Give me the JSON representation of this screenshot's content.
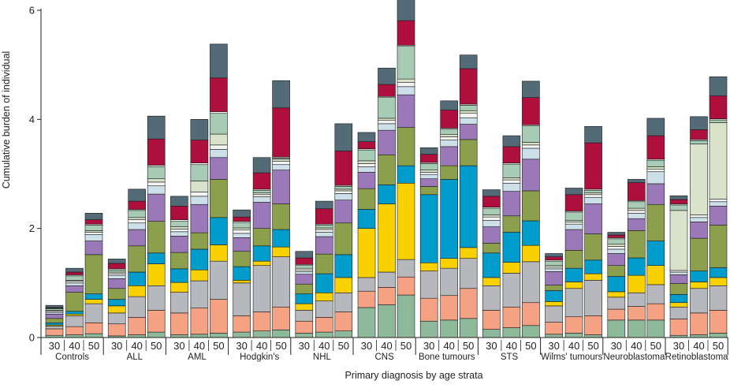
{
  "chart_data": {
    "type": "bar",
    "stacked": true,
    "xlabel": "Primary diagnosis by age strata",
    "ylabel": "Cumulative burden of individual",
    "ylim": [
      0,
      6
    ],
    "yticks": [
      "0",
      "2",
      "4",
      "6"
    ],
    "age_strata": [
      "30",
      "40",
      "50"
    ],
    "groups": [
      "Controls",
      "ALL",
      "AML",
      "Hodgkin's",
      "NHL",
      "CNS",
      "Bone tumours",
      "STS",
      "Wilms' tumours",
      "Neuroblastoma",
      "Retinoblastoma"
    ],
    "segment_colors": [
      "#8db89a",
      "#f4a184",
      "#b6b8bd",
      "#f9d100",
      "#009ccb",
      "#8b9f4c",
      "#9b78b7",
      "#cde0ea",
      "#f4f4f4",
      "#d8e3c9",
      "#a8cbb5",
      "#ffffff",
      "#ae0f3d",
      "#536a77"
    ],
    "bars": [
      {
        "group": "Controls",
        "age": "30",
        "segments": [
          0.04,
          0.12,
          0.05,
          0.02,
          0.04,
          0.08,
          0.08,
          0.03,
          0.02,
          0.02,
          0.03,
          0.01,
          0.01,
          0.04
        ]
      },
      {
        "group": "Controls",
        "age": "40",
        "segments": [
          0.05,
          0.15,
          0.2,
          0.03,
          0.05,
          0.35,
          0.12,
          0.05,
          0.03,
          0.02,
          0.08,
          0.02,
          0.05,
          0.07
        ]
      },
      {
        "group": "Controls",
        "age": "50",
        "segments": [
          0.07,
          0.2,
          0.35,
          0.08,
          0.1,
          0.72,
          0.25,
          0.12,
          0.04,
          0.03,
          0.1,
          0.02,
          0.08,
          0.12
        ]
      },
      {
        "group": "ALL",
        "age": "30",
        "segments": [
          0.03,
          0.22,
          0.2,
          0.13,
          0.12,
          0.2,
          0.18,
          0.06,
          0.03,
          0.03,
          0.04,
          0.02,
          0.1,
          0.08
        ]
      },
      {
        "group": "ALL",
        "age": "40",
        "segments": [
          0.05,
          0.32,
          0.38,
          0.2,
          0.25,
          0.48,
          0.3,
          0.12,
          0.06,
          0.04,
          0.13,
          0.02,
          0.15,
          0.22
        ]
      },
      {
        "group": "ALL",
        "age": "50",
        "segments": [
          0.1,
          0.4,
          0.45,
          0.4,
          0.2,
          0.58,
          0.5,
          0.15,
          0.07,
          0.06,
          0.22,
          0.03,
          0.48,
          0.42
        ]
      },
      {
        "group": "AML",
        "age": "30",
        "segments": [
          0.05,
          0.4,
          0.38,
          0.18,
          0.25,
          0.3,
          0.3,
          0.08,
          0.05,
          0.04,
          0.1,
          0.03,
          0.25,
          0.18
        ]
      },
      {
        "group": "AML",
        "age": "40",
        "segments": [
          0.06,
          0.48,
          0.5,
          0.2,
          0.38,
          0.3,
          0.52,
          0.15,
          0.08,
          0.2,
          0.3,
          0.03,
          0.42,
          0.38
        ]
      },
      {
        "group": "AML",
        "age": "50",
        "segments": [
          0.08,
          0.62,
          0.7,
          0.3,
          0.5,
          0.7,
          0.4,
          0.15,
          0.08,
          0.2,
          0.38,
          0.03,
          0.62,
          0.62
        ]
      },
      {
        "group": "Hodgkin's",
        "age": "30",
        "segments": [
          0.1,
          0.3,
          0.6,
          0.05,
          0.25,
          0.28,
          0.25,
          0.08,
          0.06,
          0.04,
          0.1,
          0.02,
          0.08,
          0.13
        ]
      },
      {
        "group": "Hodgkin's",
        "age": "40",
        "segments": [
          0.12,
          0.35,
          0.85,
          0.08,
          0.28,
          0.32,
          0.48,
          0.1,
          0.04,
          0.03,
          0.05,
          0.02,
          0.3,
          0.28
        ]
      },
      {
        "group": "Hodgkin's",
        "age": "50",
        "segments": [
          0.14,
          0.42,
          0.92,
          0.18,
          0.32,
          0.47,
          0.62,
          0.1,
          0.06,
          0.04,
          0.02,
          0.02,
          0.9,
          0.5
        ]
      },
      {
        "group": "NHL",
        "age": "30",
        "segments": [
          0.08,
          0.22,
          0.2,
          0.12,
          0.18,
          0.18,
          0.18,
          0.05,
          0.03,
          0.03,
          0.05,
          0.02,
          0.12,
          0.12
        ]
      },
      {
        "group": "NHL",
        "age": "40",
        "segments": [
          0.1,
          0.27,
          0.3,
          0.15,
          0.35,
          0.36,
          0.32,
          0.08,
          0.05,
          0.03,
          0.05,
          0.02,
          0.28,
          0.14
        ]
      },
      {
        "group": "NHL",
        "age": "50",
        "segments": [
          0.12,
          0.35,
          0.35,
          0.28,
          0.42,
          0.58,
          0.42,
          0.12,
          0.05,
          0.03,
          0.05,
          0.02,
          0.63,
          0.5
        ]
      },
      {
        "group": "CNS",
        "age": "30",
        "segments": [
          0.55,
          0.3,
          0.25,
          0.9,
          0.35,
          0.38,
          0.3,
          0.1,
          0.06,
          0.05,
          0.2,
          0.02,
          0.13,
          0.17
        ]
      },
      {
        "group": "CNS",
        "age": "40",
        "segments": [
          0.6,
          0.32,
          0.28,
          1.25,
          0.35,
          0.55,
          0.45,
          0.12,
          0.06,
          0.04,
          0.38,
          0.02,
          0.22,
          0.3
        ]
      },
      {
        "group": "CNS",
        "age": "50",
        "segments": [
          0.78,
          0.33,
          0.32,
          1.4,
          0.32,
          0.7,
          0.6,
          0.15,
          0.08,
          0.06,
          0.6,
          0.02,
          0.45,
          0.42
        ]
      },
      {
        "group": "Bone tumours",
        "age": "30",
        "segments": [
          0.3,
          0.42,
          0.5,
          0.15,
          1.25,
          0.15,
          0.14,
          0.08,
          0.04,
          0.04,
          0.12,
          0.02,
          0.15,
          0.12
        ]
      },
      {
        "group": "Bone tumours",
        "age": "40",
        "segments": [
          0.32,
          0.45,
          0.5,
          0.18,
          1.45,
          0.25,
          0.35,
          0.12,
          0.06,
          0.04,
          0.1,
          0.02,
          0.33,
          0.17
        ]
      },
      {
        "group": "Bone tumours",
        "age": "50",
        "segments": [
          0.35,
          0.55,
          0.55,
          0.2,
          1.5,
          0.48,
          0.28,
          0.12,
          0.08,
          0.05,
          0.1,
          0.02,
          0.65,
          0.25
        ]
      },
      {
        "group": "STS",
        "age": "30",
        "segments": [
          0.15,
          0.35,
          0.45,
          0.15,
          0.45,
          0.18,
          0.3,
          0.12,
          0.06,
          0.04,
          0.12,
          0.02,
          0.2,
          0.12
        ]
      },
      {
        "group": "STS",
        "age": "40",
        "segments": [
          0.18,
          0.38,
          0.62,
          0.2,
          0.55,
          0.3,
          0.45,
          0.15,
          0.06,
          0.04,
          0.25,
          0.02,
          0.3,
          0.2
        ]
      },
      {
        "group": "STS",
        "age": "50",
        "segments": [
          0.22,
          0.42,
          0.75,
          0.3,
          0.45,
          0.55,
          0.58,
          0.2,
          0.06,
          0.05,
          0.3,
          0.02,
          0.5,
          0.3
        ]
      },
      {
        "group": "Wilms' tumours",
        "age": "30",
        "segments": [
          0.06,
          0.22,
          0.3,
          0.08,
          0.2,
          0.1,
          0.25,
          0.05,
          0.03,
          0.03,
          0.08,
          0.02,
          0.06,
          0.06
        ]
      },
      {
        "group": "Wilms' tumours",
        "age": "40",
        "segments": [
          0.08,
          0.3,
          0.52,
          0.12,
          0.25,
          0.33,
          0.38,
          0.1,
          0.04,
          0.03,
          0.15,
          0.02,
          0.3,
          0.12
        ]
      },
      {
        "group": "Wilms' tumours",
        "age": "50",
        "segments": [
          0.05,
          0.35,
          0.65,
          0.12,
          0.25,
          0.48,
          0.55,
          0.12,
          0.05,
          0.03,
          0.05,
          0.02,
          0.85,
          0.3
        ]
      },
      {
        "group": "Neuroblastoma",
        "age": "30",
        "segments": [
          0.32,
          0.2,
          0.22,
          0.1,
          0.28,
          0.2,
          0.22,
          0.08,
          0.05,
          0.04,
          0.1,
          0.02,
          0.05,
          0.05
        ]
      },
      {
        "group": "Neuroblastoma",
        "age": "40",
        "segments": [
          0.32,
          0.25,
          0.25,
          0.32,
          0.32,
          0.5,
          0.22,
          0.1,
          0.05,
          0.04,
          0.12,
          0.02,
          0.33,
          0.06
        ]
      },
      {
        "group": "Neuroblastoma",
        "age": "50",
        "segments": [
          0.32,
          0.3,
          0.35,
          0.35,
          0.45,
          0.67,
          0.38,
          0.22,
          0.05,
          0.04,
          0.12,
          0.02,
          0.43,
          0.32
        ]
      },
      {
        "group": "Retinoblastoma",
        "age": "30",
        "segments": [
          0.04,
          0.3,
          0.22,
          0.08,
          0.15,
          0.2,
          0.16,
          0.05,
          0.03,
          1.1,
          0.1,
          0.02,
          0.08,
          0.07
        ]
      },
      {
        "group": "Retinoblastoma",
        "age": "40",
        "segments": [
          0.05,
          0.4,
          0.45,
          0.12,
          0.2,
          0.6,
          0.3,
          0.08,
          0.05,
          1.3,
          0.06,
          0.02,
          0.18,
          0.24
        ]
      },
      {
        "group": "Retinoblastoma",
        "age": "50",
        "segments": [
          0.08,
          0.42,
          0.45,
          0.15,
          0.18,
          0.78,
          0.35,
          0.08,
          0.05,
          1.4,
          0.05,
          0.02,
          0.42,
          0.35
        ]
      }
    ]
  }
}
